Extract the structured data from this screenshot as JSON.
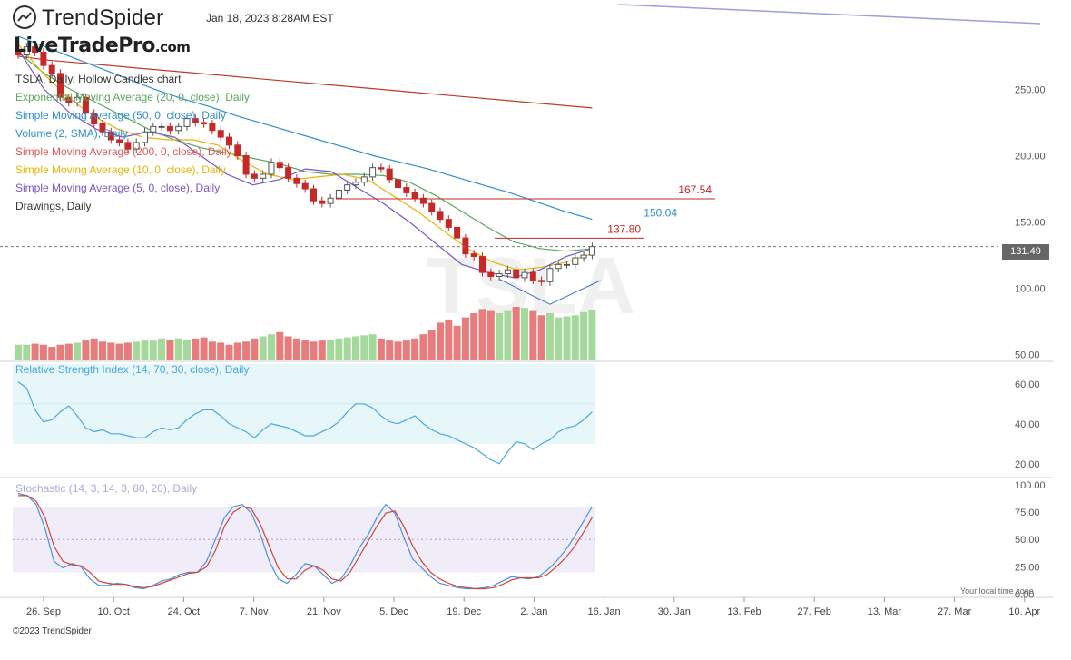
{
  "header": {
    "brand": "TrendSpider",
    "timestamp": "Jan 18, 2023 8:28AM EST",
    "watermark_site": "LiveTradePro",
    "watermark_tld": ".com",
    "ticker_watermark": "TSLA"
  },
  "legend": {
    "title": "TSLA, Daily, Hollow Candles chart",
    "items": [
      {
        "label": "Exponential Moving Average (20, 0, close), Daily",
        "color": "#5aa85a"
      },
      {
        "label": "Simple Moving Average (50, 0, close), Daily",
        "color": "#2f8fd0"
      },
      {
        "label": "Volume (2, SMA), Daily",
        "color": "#2f8fd0"
      },
      {
        "label": "Simple Moving Average (200, 0, close), Daily",
        "color": "#e05a5a"
      },
      {
        "label": "Simple Moving Average (10, 0, close), Daily",
        "color": "#e8b400"
      },
      {
        "label": "Simple Moving Average (5, 0, close), Daily",
        "color": "#7a55c8"
      },
      {
        "label": "Drawings, Daily",
        "color": "#333333"
      }
    ]
  },
  "footer": {
    "copyright": "©2023 TrendSpider",
    "local_time": "Your local time zone"
  },
  "colors": {
    "up": "#5aa85a",
    "down": "#c62828",
    "up_vol": "#a5d99c",
    "down_vol": "#e87b7b",
    "rsi": "#4aa8e0",
    "stoch_k": "#4a90e0",
    "stoch_d": "#d0443a"
  },
  "chart_data": [
    {
      "type": "candlestick",
      "title": "TSLA, Daily, Hollow Candles chart",
      "x_tick_labels": [
        "26. Sep",
        "10. Oct",
        "24. Oct",
        "7. Nov",
        "21. Nov",
        "5. Dec",
        "19. Dec",
        "2. Jan",
        "16. Jan",
        "30. Jan",
        "13. Feb",
        "27. Feb",
        "13. Mar",
        "27. Mar",
        "10. Apr"
      ],
      "y_tick_labels": [
        "250.00",
        "200.00",
        "150.00",
        "100.00",
        "50.00"
      ],
      "ylim": [
        45,
        290
      ],
      "last_price": "131.49",
      "levels": [
        {
          "label": "167.54",
          "value": 167.54,
          "color": "#c62828"
        },
        {
          "label": "150.04",
          "value": 150.04,
          "color": "#2f8fd0"
        },
        {
          "label": "137.80",
          "value": 137.8,
          "color": "#c62828"
        }
      ],
      "close": [
        276,
        282,
        278,
        268,
        262,
        244,
        240,
        244,
        232,
        224,
        218,
        212,
        210,
        205,
        210,
        218,
        222,
        222,
        219,
        222,
        228,
        225,
        224,
        219,
        214,
        208,
        200,
        186,
        183,
        186,
        195,
        191,
        183,
        179,
        175,
        166,
        164,
        168,
        174,
        178,
        180,
        184,
        191,
        190,
        182,
        176,
        172,
        168,
        164,
        158,
        152,
        146,
        138,
        126,
        124,
        112,
        109,
        111,
        114,
        108,
        112,
        106,
        105,
        115,
        118,
        118,
        123,
        125,
        131.49
      ],
      "series": [
        {
          "name": "Simple Moving Average (200, 0, close), Daily",
          "values": [
            275,
            272,
            270,
            268,
            266,
            264,
            262,
            260,
            258,
            256,
            254,
            252,
            250,
            248,
            246,
            244,
            242,
            240,
            238,
            236
          ]
        },
        {
          "name": "Simple Moving Average (50, 0, close), Daily",
          "values": [
            290,
            282,
            274,
            266,
            258,
            250,
            243,
            237,
            230,
            224,
            218,
            212,
            206,
            200,
            195,
            190,
            184,
            178,
            172,
            165,
            158,
            152
          ]
        },
        {
          "name": "Exponential Moving Average (20, 0, close), Daily",
          "values": [
            278,
            262,
            250,
            240,
            230,
            220,
            212,
            206,
            202,
            198,
            194,
            188,
            186,
            186,
            185,
            180,
            170,
            158,
            146,
            135,
            130,
            128,
            130
          ]
        },
        {
          "name": "Simple Moving Average (10, 0, close), Daily",
          "values": [
            284,
            262,
            244,
            230,
            220,
            214,
            212,
            212,
            208,
            196,
            186,
            182,
            184,
            186,
            182,
            170,
            158,
            144,
            130,
            120,
            114,
            116,
            120,
            126
          ]
        },
        {
          "name": "Simple Moving Average (5, 0, close), Daily",
          "values": [
            280,
            250,
            232,
            220,
            214,
            218,
            214,
            200,
            186,
            178,
            182,
            190,
            188,
            176,
            164,
            150,
            134,
            118,
            112,
            108,
            114,
            124,
            130
          ]
        }
      ],
      "volume": [
        14,
        14,
        15,
        14,
        12,
        14,
        15,
        16,
        18,
        20,
        17,
        16,
        15,
        16,
        17,
        18,
        18,
        20,
        19,
        20,
        19,
        20,
        21,
        17,
        16,
        14,
        16,
        17,
        20,
        22,
        24,
        26,
        22,
        20,
        18,
        17,
        18,
        19,
        20,
        21,
        22,
        23,
        24,
        20,
        18,
        17,
        18,
        20,
        24,
        28,
        35,
        38,
        32,
        40,
        44,
        48,
        46,
        44,
        46,
        50,
        49,
        46,
        42,
        44,
        40,
        41,
        42,
        45,
        47
      ]
    },
    {
      "type": "line",
      "title": "Relative Strength Index (14, 70, 30, close), Daily",
      "y_tick_labels": [
        "60.00",
        "40.00",
        "20.00"
      ],
      "ylim": [
        14,
        69
      ],
      "bands": [
        30,
        50,
        70
      ],
      "values": [
        61,
        58,
        47,
        41,
        42,
        46,
        49,
        44,
        38,
        36,
        37,
        35,
        35,
        34,
        33,
        33,
        36,
        38,
        37,
        38,
        42,
        45,
        47,
        47,
        44,
        40,
        38,
        36,
        33,
        37,
        40,
        39,
        38,
        36,
        34,
        34,
        36,
        38,
        41,
        46,
        50,
        50,
        48,
        44,
        41,
        40,
        42,
        44,
        40,
        37,
        35,
        34,
        32,
        30,
        28,
        25,
        22,
        20,
        26,
        31,
        30,
        27,
        30,
        32,
        36,
        38,
        39,
        42,
        46
      ]
    },
    {
      "type": "line",
      "title": "Stochastic (14, 3, 14, 3, 80, 20), Daily",
      "y_tick_labels": [
        "100.00",
        "75.00",
        "50.00",
        "25.00",
        "0.00"
      ],
      "ylim": [
        -2,
        104
      ],
      "bands": [
        20,
        50,
        80
      ],
      "series": [
        {
          "name": "K",
          "values": [
            92,
            90,
            82,
            60,
            30,
            24,
            28,
            25,
            14,
            8,
            8,
            10,
            9,
            6,
            5,
            8,
            12,
            14,
            18,
            20,
            20,
            30,
            50,
            70,
            80,
            82,
            74,
            55,
            30,
            14,
            10,
            18,
            28,
            26,
            18,
            10,
            14,
            26,
            42,
            54,
            70,
            82,
            74,
            52,
            32,
            24,
            16,
            10,
            8,
            6,
            5,
            5,
            6,
            8,
            12,
            16,
            15,
            14,
            16,
            22,
            30,
            40,
            52,
            66,
            80
          ]
        },
        {
          "name": "D",
          "values": [
            90,
            90,
            85,
            70,
            44,
            30,
            27,
            26,
            20,
            12,
            10,
            9,
            9,
            7,
            6,
            7,
            10,
            13,
            16,
            19,
            20,
            25,
            40,
            62,
            75,
            80,
            78,
            64,
            44,
            24,
            14,
            14,
            22,
            26,
            22,
            14,
            12,
            20,
            34,
            48,
            62,
            74,
            76,
            62,
            44,
            30,
            20,
            14,
            10,
            7,
            6,
            5,
            5,
            6,
            9,
            13,
            15,
            15,
            15,
            18,
            25,
            33,
            43,
            56,
            70
          ]
        }
      ]
    }
  ]
}
